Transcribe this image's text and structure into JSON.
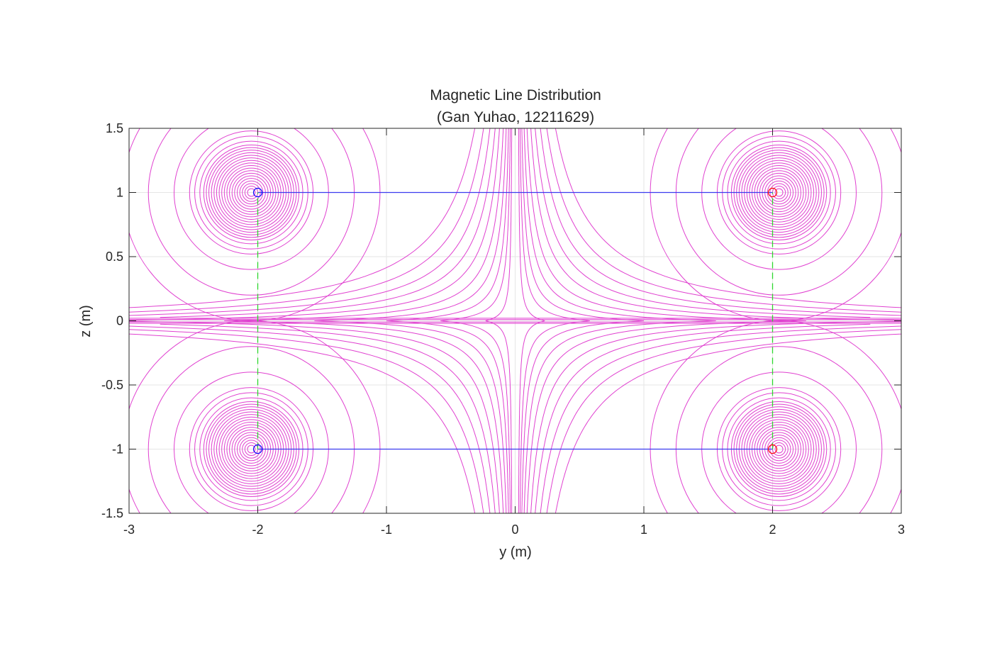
{
  "chart_data": {
    "type": "line",
    "title": "Magnetic Line Distribution",
    "subtitle": "(Gan Yuhao, 12211629)",
    "xlabel": "y (m)",
    "ylabel": "z (m)",
    "xlim": [
      -3,
      3
    ],
    "ylim": [
      -1.5,
      1.5
    ],
    "xticks": [
      -3,
      -2,
      -1,
      0,
      1,
      2,
      3
    ],
    "xtick_labels": [
      "-3",
      "-2",
      "-1",
      "0",
      "1",
      "2",
      "3"
    ],
    "yticks": [
      -1.5,
      -1,
      -0.5,
      0,
      0.5,
      1,
      1.5
    ],
    "ytick_labels": [
      "-1.5",
      "-1",
      "-0.5",
      "0",
      "0.5",
      "1",
      "1.5"
    ],
    "grid": true,
    "legend": "none",
    "colors": {
      "field_lines": "#e041d0",
      "wire": "#3b3bef",
      "guide": "#2ed82e",
      "source_marker": "#0000ff",
      "sink_marker": "#ff0000",
      "grid": "#e6e6e6",
      "axes": "#262626"
    },
    "wires": [
      {
        "x": [
          -2,
          2
        ],
        "y": [
          1,
          1
        ]
      },
      {
        "x": [
          -2,
          2
        ],
        "y": [
          -1,
          -1
        ]
      }
    ],
    "guides": [
      {
        "x": [
          -2,
          -2
        ],
        "y": [
          -1,
          1
        ]
      },
      {
        "x": [
          2,
          2
        ],
        "y": [
          -1,
          1
        ]
      }
    ],
    "markers": [
      {
        "x": -2,
        "y": 1,
        "color": "#0000ff"
      },
      {
        "x": -2,
        "y": -1,
        "color": "#0000ff"
      },
      {
        "x": 2,
        "y": 1,
        "color": "#ff0000"
      },
      {
        "x": 2,
        "y": -1,
        "color": "#ff0000"
      }
    ],
    "loop_centers": [
      {
        "x": -2.05,
        "y": 1.0
      },
      {
        "x": 2.05,
        "y": 1.0
      },
      {
        "x": -2.05,
        "y": -1.0
      },
      {
        "x": 2.05,
        "y": -1.0
      }
    ],
    "loop_radii": [
      0.03,
      0.05,
      0.07,
      0.09,
      0.11,
      0.13,
      0.15,
      0.17,
      0.19,
      0.21,
      0.23,
      0.25,
      0.27,
      0.29,
      0.31,
      0.33,
      0.35,
      0.37,
      0.4,
      0.44,
      0.48
    ],
    "outer_loop_radii": [
      0.6,
      0.8,
      1.0
    ],
    "open_line_levels": [
      0.03,
      0.08,
      0.14,
      0.22,
      0.32,
      0.45,
      0.6,
      0.78,
      1.0,
      1.3
    ]
  }
}
